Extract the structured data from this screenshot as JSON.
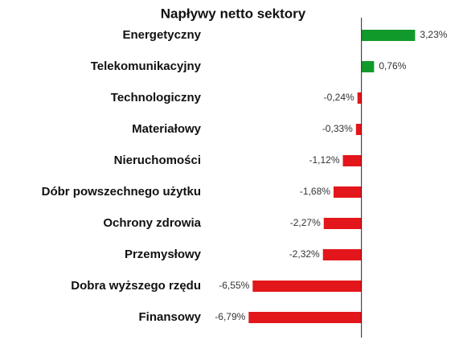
{
  "chart_data": {
    "type": "hbar",
    "title": "Napływy netto sektory",
    "categories": [
      "Energetyczny",
      "Telekomunikacyjny",
      "Technologiczny",
      "Materiałowy",
      "Nieruchomości",
      "Dóbr powszechnego użytku",
      "Ochrony zdrowia",
      "Przemysłowy",
      "Dobra wyższego rzędu",
      "Finansowy"
    ],
    "values": [
      3.23,
      0.76,
      -0.24,
      -0.33,
      -1.12,
      -1.68,
      -2.27,
      -2.32,
      -6.55,
      -6.79
    ],
    "value_labels": [
      "3,23%",
      "0,76%",
      "-0,24%",
      "-0,33%",
      "-1,12%",
      "-1,68%",
      "-2,27%",
      "-2,32%",
      "-6,55%",
      "-6,79%"
    ],
    "positive_color": "#119a2b",
    "negative_color": "#e3161b",
    "xlim": [
      -7,
      3.5
    ]
  }
}
